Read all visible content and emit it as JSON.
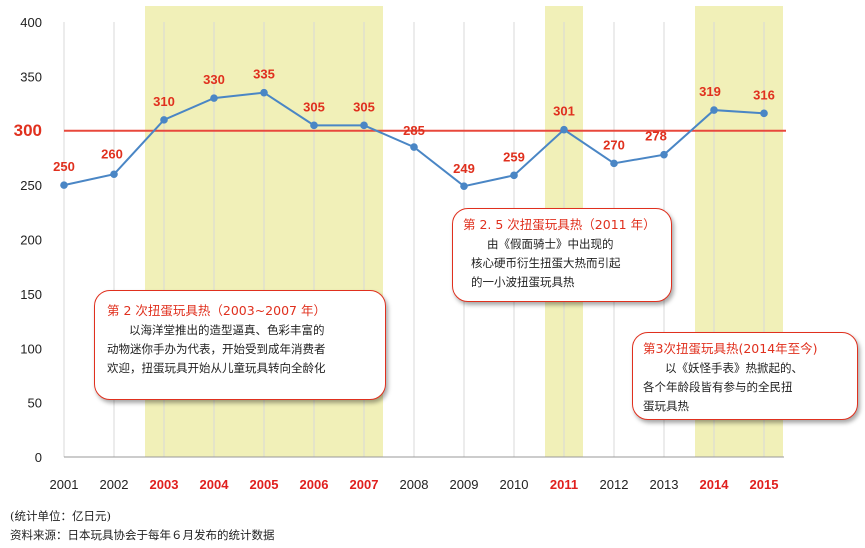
{
  "chart_data": {
    "type": "line",
    "x": [
      "2001",
      "2002",
      "2003",
      "2004",
      "2005",
      "2006",
      "2007",
      "2008",
      "2009",
      "2010",
      "2011",
      "2012",
      "2013",
      "2014",
      "2015"
    ],
    "series": [
      {
        "values": [
          250,
          260,
          310,
          330,
          335,
          305,
          305,
          285,
          249,
          259,
          301,
          270,
          278,
          319,
          316
        ]
      }
    ],
    "data_labels": [
      "250",
      "260",
      "310",
      "330",
      "335",
      "305",
      "305",
      "285",
      "249",
      "259",
      "301",
      "270",
      "278",
      "319",
      "316"
    ],
    "ylim": [
      0,
      400
    ],
    "y_ticks": [
      "0",
      "50",
      "100",
      "150",
      "200",
      "250",
      "300",
      "350",
      "400"
    ],
    "y_tick_values": [
      0,
      50,
      100,
      150,
      200,
      250,
      300,
      350,
      400
    ],
    "highlight_years": [
      "2003",
      "2004",
      "2005",
      "2006",
      "2007",
      "2011",
      "2014",
      "2015"
    ],
    "reference_line": {
      "value": 300,
      "label": "300"
    },
    "shaded_ranges": [
      {
        "from": "2003",
        "to": "2007"
      },
      {
        "from": "2011",
        "to": "2011"
      },
      {
        "from": "2014",
        "to": "2015"
      }
    ],
    "grid": "vertical",
    "colors": {
      "line": "#4a86c5",
      "reference": "#e8483c",
      "label": "#e0301e",
      "shade": "#f1f0b8",
      "grid": "#d8d8d8",
      "axis_text": "#222222",
      "highlight_tick": "#e0201e"
    }
  },
  "callouts": {
    "c1": {
      "title": "第 2 次扭蛋玩具热（2003~2007 年）",
      "lines": [
        "以海洋堂推出的造型逼真、色彩丰富的",
        "动物迷你手办为代表，开始受到成年消费者",
        "欢迎，扭蛋玩具开始从儿童玩具转向全龄化"
      ]
    },
    "c2": {
      "title": "第 2. 5 次扭蛋玩具热（2011 年）",
      "lines": [
        "由《假面骑士》中出现的",
        "核心硬币衍生扭蛋大热而引起",
        "的一小波扭蛋玩具热"
      ]
    },
    "c3": {
      "title": "第3次扭蛋玩具热(2014年至今)",
      "lines": [
        "以《妖怪手表》热掀起的、",
        "各个年龄段皆有参与的全民扭",
        "蛋玩具热"
      ]
    }
  },
  "footer": {
    "unit": "(统计单位：亿日元)",
    "source": "资料来源：日本玩具协会于每年６月发布的统计数据"
  }
}
